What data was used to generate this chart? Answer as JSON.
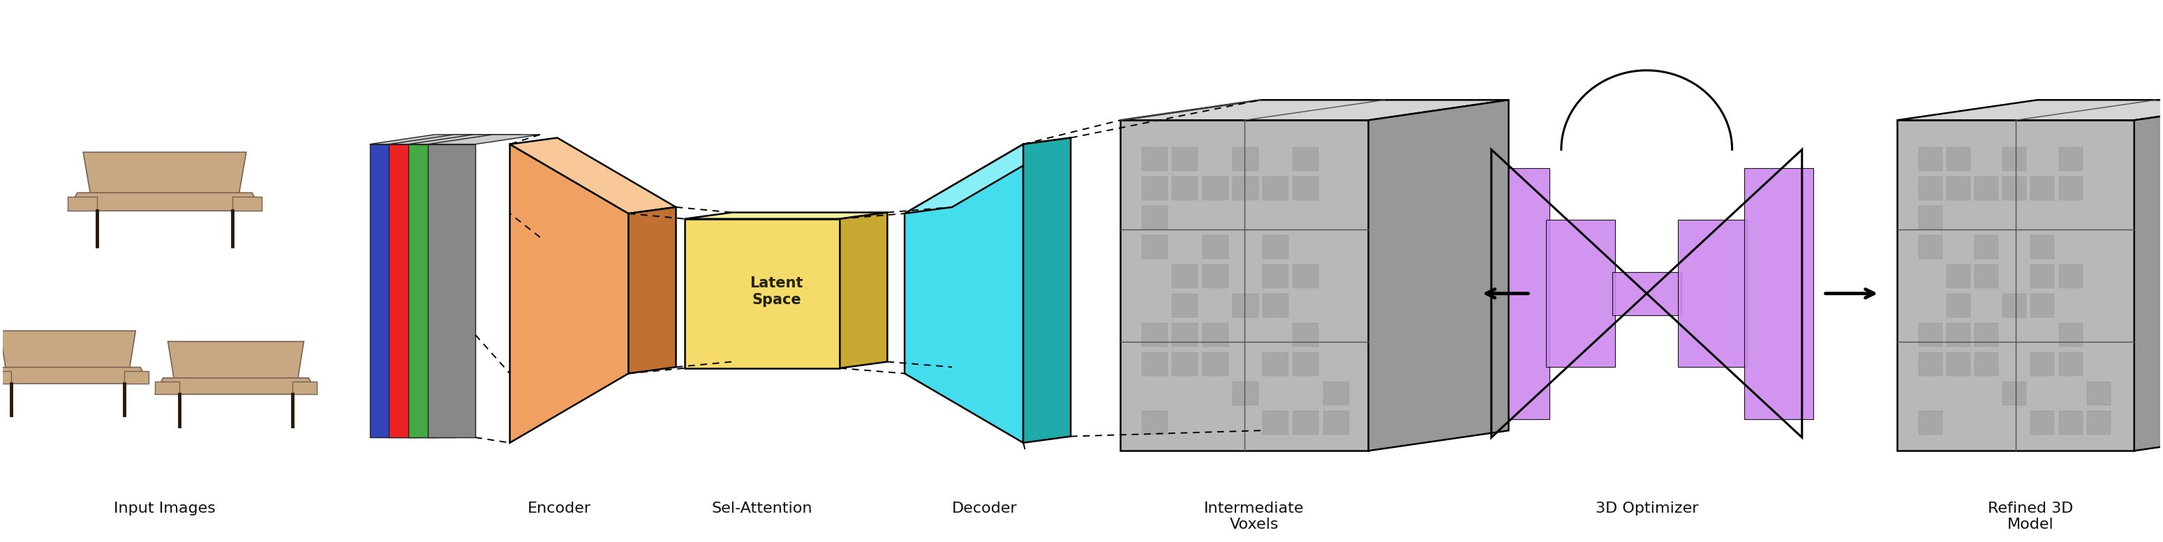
{
  "figure_width": 30.99,
  "figure_height": 7.77,
  "bg_color": "#ffffff",
  "colors": {
    "encoder_face": "#F0A060",
    "encoder_side": "#C07030",
    "encoder_top": "#F8C898",
    "latent_face": "#F5DC6A",
    "latent_side": "#C8A830",
    "latent_top": "#FAF0A0",
    "decoder_face": "#44DDEE",
    "decoder_side": "#20AAAA",
    "decoder_top": "#88EEF8",
    "voxel_face": "#B8B8B8",
    "voxel_top": "#D5D5D5",
    "voxel_side": "#989898",
    "optimizer_purple": "#CC88EE",
    "stack_blue": "#3344BB",
    "stack_red": "#EE2222",
    "stack_green": "#44AA44",
    "stack_gray": "#888888",
    "text_color": "#111111"
  },
  "label_fontsize": 16,
  "latent_label_fontsize": 15,
  "labels": {
    "input": "Input Images",
    "encoder": "Encoder",
    "sel_attention": "Sel-Attention",
    "decoder": "Decoder",
    "intermediate": "Intermediate\nVoxels",
    "optimizer": "3D Optimizer",
    "refined": "Refined 3D\nModel"
  }
}
